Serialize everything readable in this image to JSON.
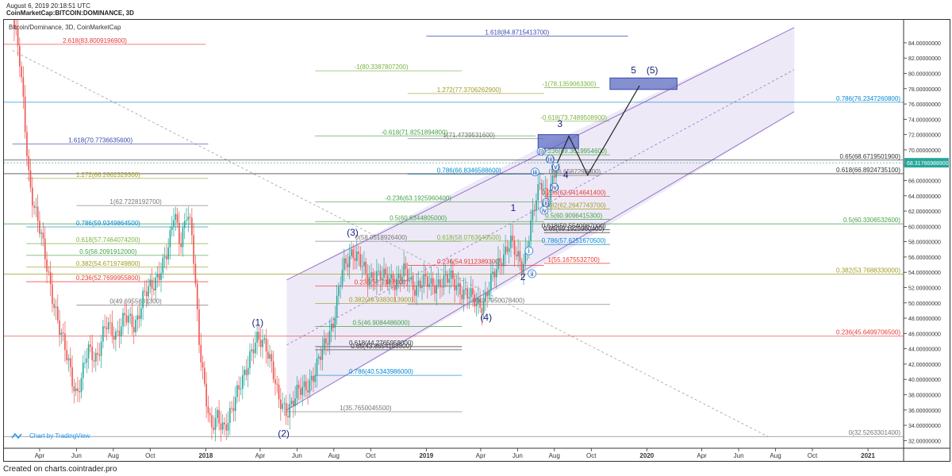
{
  "header": {
    "timestamp": "August 6, 2019 20:18:51 UTC",
    "symbol": "CoinMarketCap:BITCOIN:DOMINANCE, 3D"
  },
  "footer": {
    "text": "Created on charts.cointrader.pro"
  },
  "watermark": "Chart by TradingView",
  "chart_data": {
    "type": "candlestick",
    "title": "Bitcoin/Dominance, 3D, CoinMarketCap",
    "ylim": [
      31,
      87
    ],
    "y_ticks": [
      "84.00000000",
      "82.00000000",
      "80.00000000",
      "78.00000000",
      "76.00000000",
      "74.00000000",
      "72.00000000",
      "70.00000000",
      "68.00000000",
      "66.00000000",
      "64.00000000",
      "62.00000000",
      "60.00000000",
      "58.00000000",
      "56.00000000",
      "54.00000000",
      "52.00000000",
      "50.00000000",
      "48.00000000",
      "46.00000000",
      "44.00000000",
      "42.00000000",
      "40.00000000",
      "38.00000000",
      "36.00000000",
      "34.00000000",
      "32.00000000"
    ],
    "x_ticks": [
      "Apr",
      "Jun",
      "Aug",
      "Oct",
      "2018",
      "Apr",
      "Jun",
      "Aug",
      "Oct",
      "2019",
      "Apr",
      "Jun",
      "Aug",
      "Oct",
      "2020",
      "Apr",
      "Jun",
      "Aug",
      "Oct",
      "2021"
    ],
    "last_price": "68.31766988900",
    "price_path": [
      [
        "2017-02-15",
        87
      ],
      [
        "2017-02-25",
        83
      ],
      [
        "2017-03-05",
        76
      ],
      [
        "2017-03-15",
        66
      ],
      [
        "2017-03-25",
        62
      ],
      [
        "2017-04-05",
        58
      ],
      [
        "2017-04-20",
        52
      ],
      [
        "2017-05-05",
        46
      ],
      [
        "2017-05-20",
        42
      ],
      [
        "2017-06-01",
        38
      ],
      [
        "2017-06-10",
        40
      ],
      [
        "2017-06-20",
        44
      ],
      [
        "2017-07-05",
        43
      ],
      [
        "2017-07-20",
        47
      ],
      [
        "2017-08-05",
        46
      ],
      [
        "2017-08-20",
        48
      ],
      [
        "2017-09-05",
        47
      ],
      [
        "2017-09-20",
        51
      ],
      [
        "2017-10-05",
        52
      ],
      [
        "2017-10-20",
        55
      ],
      [
        "2017-11-01",
        57
      ],
      [
        "2017-11-10",
        62
      ],
      [
        "2017-11-20",
        58
      ],
      [
        "2017-12-01",
        62
      ],
      [
        "2017-12-10",
        58
      ],
      [
        "2017-12-20",
        46
      ],
      [
        "2018-01-01",
        38
      ],
      [
        "2018-01-10",
        33
      ],
      [
        "2018-01-20",
        35
      ],
      [
        "2018-02-01",
        34
      ],
      [
        "2018-02-15",
        36
      ],
      [
        "2018-03-01",
        40
      ],
      [
        "2018-03-15",
        43
      ],
      [
        "2018-03-28",
        45
      ],
      [
        "2018-04-10",
        45
      ],
      [
        "2018-04-20",
        42
      ],
      [
        "2018-05-01",
        37
      ],
      [
        "2018-05-15",
        36
      ],
      [
        "2018-06-01",
        38
      ],
      [
        "2018-06-15",
        39
      ],
      [
        "2018-07-01",
        41
      ],
      [
        "2018-07-15",
        44
      ],
      [
        "2018-08-01",
        48
      ],
      [
        "2018-08-15",
        54
      ],
      [
        "2018-09-01",
        57
      ],
      [
        "2018-09-10",
        56
      ],
      [
        "2018-09-25",
        53
      ],
      [
        "2018-10-10",
        54
      ],
      [
        "2018-10-25",
        53
      ],
      [
        "2018-11-10",
        53
      ],
      [
        "2018-11-25",
        54
      ],
      [
        "2018-12-10",
        52
      ],
      [
        "2018-12-25",
        53
      ],
      [
        "2019-01-10",
        52
      ],
      [
        "2019-01-25",
        53
      ],
      [
        "2019-02-10",
        53
      ],
      [
        "2019-02-25",
        52
      ],
      [
        "2019-03-10",
        51
      ],
      [
        "2019-03-25",
        50
      ],
      [
        "2019-04-05",
        50
      ],
      [
        "2019-04-20",
        53
      ],
      [
        "2019-05-05",
        56
      ],
      [
        "2019-05-20",
        58
      ],
      [
        "2019-05-30",
        56
      ],
      [
        "2019-06-10",
        55
      ],
      [
        "2019-06-20",
        59
      ],
      [
        "2019-07-01",
        63
      ],
      [
        "2019-07-10",
        66
      ],
      [
        "2019-07-20",
        64
      ],
      [
        "2019-07-30",
        66
      ],
      [
        "2019-08-06",
        68.3
      ]
    ],
    "fib_levels": [
      {
        "label": "1.618(84.8715413700)",
        "y": 84.87,
        "x_from": "2019-01-01",
        "x_to": "2019-12-01",
        "color": "#3949ab"
      },
      {
        "label": "2.618(83.8009196900)",
        "y": 83.8,
        "x_from": "2017-02-01",
        "x_to": "2018-01-01",
        "color": "#e53935"
      },
      {
        "label": "-1(80.3387807200)",
        "y": 80.34,
        "x_from": "2018-07-01",
        "x_to": "2019-03-01",
        "color": "#7cb342"
      },
      {
        "label": "-1(78.1359063300)",
        "y": 78.14,
        "x_from": "2019-07-15",
        "x_to": "2019-10-15",
        "color": "#7cb342"
      },
      {
        "label": "1.272(77.3706262900)",
        "y": 77.37,
        "x_from": "2018-12-01",
        "x_to": "2019-07-15",
        "color": "#9e9d24"
      },
      {
        "label": "0.786(76.2347260800)",
        "y": 76.23,
        "x_from": "2017-01-01",
        "x_to": "2021-03-01",
        "color": "#0288d1"
      },
      {
        "label": "-0.618(73.7489508900)",
        "y": 73.75,
        "x_from": "2019-07-15",
        "x_to": "2019-11-01",
        "color": "#7cb342"
      },
      {
        "label": "-0.618(71.8251894800)",
        "y": 71.83,
        "x_from": "2018-07-01",
        "x_to": "2019-07-01",
        "color": "#43a047"
      },
      {
        "label": "1(71.4739531600)",
        "y": 71.47,
        "x_from": "2018-12-01",
        "x_to": "2019-07-15",
        "color": "#757575"
      },
      {
        "label": "1.618(70.7736635600)",
        "y": 70.77,
        "x_from": "2017-02-15",
        "x_to": "2018-01-05",
        "color": "#3949ab"
      },
      {
        "label": "-0.236(69.3619954600)",
        "y": 69.36,
        "x_from": "2019-07-15",
        "x_to": "2019-11-01",
        "color": "#43a047"
      },
      {
        "label": "0.65(68.6719501900)",
        "y": 68.67,
        "x_from": "2017-01-01",
        "x_to": "2021-03-01",
        "color": "#333333"
      },
      {
        "label": "0.786(66.8346588600)",
        "y": 66.83,
        "x_from": "2018-12-01",
        "x_to": "2019-07-15",
        "color": "#0288d1"
      },
      {
        "label": "0.618(66.8924735100)",
        "y": 66.89,
        "x_from": "2017-01-01",
        "x_to": "2021-03-01",
        "color": "#333333"
      },
      {
        "label": "0(66.6587298000)",
        "y": 66.66,
        "x_from": "2019-08-01",
        "x_to": "2019-10-15",
        "color": "#757575"
      },
      {
        "label": "1.272(66.2662329300)",
        "y": 66.27,
        "x_from": "2017-03-10",
        "x_to": "2018-01-05",
        "color": "#9e9d24"
      },
      {
        "label": "0.236(63.9414641400)",
        "y": 63.94,
        "x_from": "2019-07-15",
        "x_to": "2019-11-01",
        "color": "#e53935"
      },
      {
        "label": "-0.236(63.1925960400)",
        "y": 63.19,
        "x_from": "2018-07-01",
        "x_to": "2019-07-15",
        "color": "#43a047"
      },
      {
        "label": "1(62.7228192700)",
        "y": 62.72,
        "x_from": "2017-06-01",
        "x_to": "2018-01-05",
        "color": "#757575"
      },
      {
        "label": "0.382(62.2647743700)",
        "y": 62.26,
        "x_from": "2019-07-15",
        "x_to": "2019-11-01",
        "color": "#9e9d24"
      },
      {
        "label": "0.5(60.6344805000)",
        "y": 60.63,
        "x_from": "2018-07-01",
        "x_to": "2019-07-15",
        "color": "#43a047"
      },
      {
        "label": "0.5(60.9096415300)",
        "y": 60.91,
        "x_from": "2019-07-15",
        "x_to": "2019-11-01",
        "color": "#43a047"
      },
      {
        "label": "0.5(60.3306532600)",
        "y": 60.33,
        "x_from": "2017-01-01",
        "x_to": "2021-03-01",
        "color": "#43a047"
      },
      {
        "label": "0.786(59.9349864500)",
        "y": 59.93,
        "x_from": "2017-03-10",
        "x_to": "2018-01-05",
        "color": "#0288d1"
      },
      {
        "label": "0.618(59.5540987000)",
        "y": 59.55,
        "x_from": "2019-07-15",
        "x_to": "2019-11-01",
        "color": "#333333"
      },
      {
        "label": "0.65(59.1925960400)",
        "y": 59.19,
        "x_from": "2019-07-15",
        "x_to": "2019-11-01",
        "color": "#333333"
      },
      {
        "label": "0(58.0518926400)",
        "y": 58.05,
        "x_from": "2018-07-01",
        "x_to": "2019-03-01",
        "color": "#757575"
      },
      {
        "label": "0.618(58.0763649500)",
        "y": 58.08,
        "x_from": "2018-12-01",
        "x_to": "2019-07-15",
        "color": "#7cb342"
      },
      {
        "label": "0.618(57.7464074200)",
        "y": 57.75,
        "x_from": "2017-03-10",
        "x_to": "2018-01-05",
        "color": "#7cb342"
      },
      {
        "label": "0.786(57.6251670500)",
        "y": 57.63,
        "x_from": "2019-07-15",
        "x_to": "2019-11-01",
        "color": "#0288d1"
      },
      {
        "label": "0.5(56.2091912000)",
        "y": 56.21,
        "x_from": "2017-03-10",
        "x_to": "2018-01-05",
        "color": "#43a047"
      },
      {
        "label": "1(55.1675532700)",
        "y": 55.17,
        "x_from": "2019-07-15",
        "x_to": "2019-11-01",
        "color": "#e53935"
      },
      {
        "label": "0.236(54.9112389300)",
        "y": 54.91,
        "x_from": "2018-12-01",
        "x_to": "2019-07-15",
        "color": "#e53935"
      },
      {
        "label": "0.382(54.6719749800)",
        "y": 54.67,
        "x_from": "2017-03-10",
        "x_to": "2018-01-05",
        "color": "#9e9d24"
      },
      {
        "label": "0.382(53.7688330000)",
        "y": 53.77,
        "x_from": "2017-01-01",
        "x_to": "2021-03-01",
        "color": "#9e9d24"
      },
      {
        "label": "0.236(52.7699955800)",
        "y": 52.77,
        "x_from": "2017-03-10",
        "x_to": "2018-01-05",
        "color": "#e53935"
      },
      {
        "label": "0.236(52.2187000)",
        "y": 52.22,
        "x_from": "2018-07-01",
        "x_to": "2019-03-01",
        "color": "#e53935"
      },
      {
        "label": "0(49.6955631300)",
        "y": 49.7,
        "x_from": "2017-06-01",
        "x_to": "2018-01-05",
        "color": "#757575"
      },
      {
        "label": "0.382(49.9383013900)",
        "y": 49.94,
        "x_from": "2018-07-01",
        "x_to": "2019-03-01",
        "color": "#9e9d24"
      },
      {
        "label": "0(49.7950078400)",
        "y": 49.8,
        "x_from": "2018-12-01",
        "x_to": "2019-11-01",
        "color": "#757575"
      },
      {
        "label": "0.5(46.9084486000)",
        "y": 46.91,
        "x_from": "2018-07-01",
        "x_to": "2019-03-01",
        "color": "#43a047"
      },
      {
        "label": "0.236(45.6499706500)",
        "y": 45.65,
        "x_from": "2017-01-01",
        "x_to": "2021-03-01",
        "color": "#e53935"
      },
      {
        "label": "0.618(44.2765958000)",
        "y": 44.28,
        "x_from": "2018-07-01",
        "x_to": "2019-03-01",
        "color": "#333333"
      },
      {
        "label": "0.65(43.8654153800)",
        "y": 43.87,
        "x_from": "2018-07-01",
        "x_to": "2019-03-01",
        "color": "#333333"
      },
      {
        "label": "0.786(40.5343986000)",
        "y": 40.53,
        "x_from": "2018-07-01",
        "x_to": "2019-03-01",
        "color": "#0288d1"
      },
      {
        "label": "1(35.7650045500)",
        "y": 35.77,
        "x_from": "2018-05-15",
        "x_to": "2019-03-01",
        "color": "#757575"
      },
      {
        "label": "0(32.5263301400)",
        "y": 32.53,
        "x_from": "2017-01-01",
        "x_to": "2021-03-01",
        "color": "#757575"
      }
    ],
    "wave_labels": [
      {
        "text": "(1)",
        "x": "2018-03-28",
        "y": 47.0
      },
      {
        "text": "(2)",
        "x": "2018-05-10",
        "y": 32.5
      },
      {
        "text": "(3)",
        "x": "2018-09-01",
        "y": 58.8
      },
      {
        "text": "(4)",
        "x": "2019-04-10",
        "y": 47.7
      },
      {
        "text": "1",
        "x": "2019-05-25",
        "y": 62.0
      },
      {
        "text": "2",
        "x": "2019-06-10",
        "y": 53.0
      },
      {
        "text": "3",
        "x": "2019-08-10",
        "y": 73.0
      },
      {
        "text": "4",
        "x": "2019-08-20",
        "y": 66.3
      },
      {
        "text": "5",
        "x": "2019-12-10",
        "y": 80.0
      },
      {
        "text": "(5)",
        "x": "2020-01-10",
        "y": 80.0
      },
      {
        "text": "i",
        "x": "2019-06-20",
        "y": 56.5
      },
      {
        "text": "ii",
        "x": "2019-06-25",
        "y": 53.5
      },
      {
        "text": "iii",
        "x": "2019-06-30",
        "y": 66.8
      },
      {
        "text": "iv",
        "x": "2019-07-15",
        "y": 61.8
      },
      {
        "text": "(i)",
        "x": "2019-07-10",
        "y": 69.5
      },
      {
        "text": "(ii)",
        "x": "2019-07-18",
        "y": 62.8
      },
      {
        "text": "(iii)",
        "x": "2019-07-25",
        "y": 68.5
      },
      {
        "text": "(iv)",
        "x": "2019-08-01",
        "y": 64.8
      },
      {
        "text": "(v)",
        "x": "2019-08-03",
        "y": 67.5
      }
    ]
  }
}
